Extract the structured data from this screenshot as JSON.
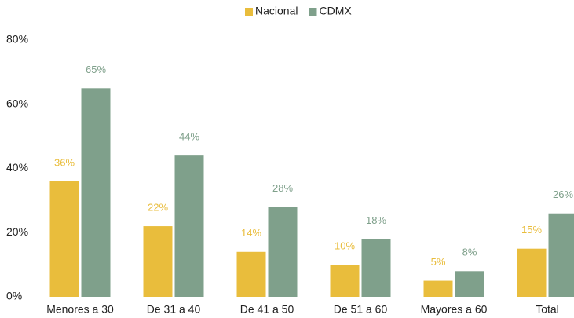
{
  "chart_data": {
    "type": "bar",
    "categories": [
      "Menores a 30",
      "De 31 a 40",
      "De 41 a 50",
      "De 51 a 60",
      "Mayores a 60",
      "Total"
    ],
    "series": [
      {
        "name": "Nacional",
        "color": "#e9bd3c",
        "values": [
          36,
          22,
          14,
          10,
          5,
          15
        ],
        "value_labels": [
          "36%",
          "22%",
          "14%",
          "10%",
          "5%",
          "15%"
        ]
      },
      {
        "name": "CDMX",
        "color": "#7fa08b",
        "values": [
          65,
          44,
          28,
          18,
          8,
          26
        ],
        "value_labels": [
          "65%",
          "44%",
          "28%",
          "18%",
          "8%",
          "26%"
        ]
      }
    ],
    "ylim": [
      0,
      80
    ],
    "yticks": [
      {
        "value": 0,
        "label": "0%"
      },
      {
        "value": 20,
        "label": "20%"
      },
      {
        "value": 40,
        "label": "40%"
      },
      {
        "value": 60,
        "label": "60%"
      },
      {
        "value": 80,
        "label": "80%"
      }
    ],
    "grid": false,
    "legend": "top"
  }
}
